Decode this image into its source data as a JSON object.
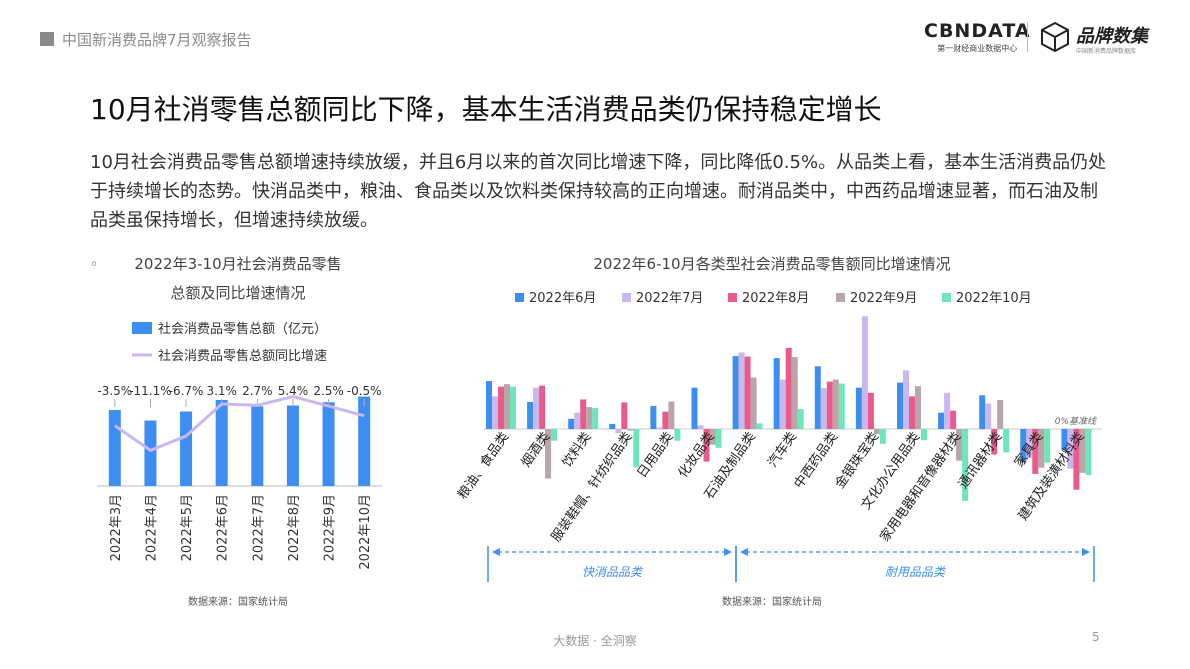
{
  "header": {
    "report_title": "中国新消费品牌7月观察报告"
  },
  "logos": {
    "cbndata_name": "CBNDATA",
    "cbndata_sub": "第一财经商业数据中心",
    "brand_name": "品牌数集",
    "brand_sub": "中国新消费品牌数据库"
  },
  "title": "10月社消零售总额同比下降，基本生活消费品类仍保持稳定增长",
  "paragraph": "10月社会消费品零售总额增速持续放缓，并且6月以来的首次同比增速下降，同比降低0.5%。从品类上看，基本生活消费品仍处于持续增长的态势。快消品类中，粮油、食品类以及饮料类保持较高的正向增速。耐消品类中，中西药品增速显著，而石油及制品类虽保持增长，但增速持续放缓。",
  "chart_data": [
    {
      "type": "bar",
      "title_lines": [
        "2022年3-10月社会消费品零售",
        "总额及同比增速情况"
      ],
      "bullet": "◦",
      "categories": [
        "2022年3月",
        "2022年4月",
        "2022年5月",
        "2022年6月",
        "2022年7月",
        "2022年8月",
        "2022年9月",
        "2022年10月"
      ],
      "series": [
        {
          "name": "社会消费品零售总额（亿元）",
          "type": "bar",
          "color": "#3D8EF0",
          "values": [
            34233,
            29483,
            33547,
            38742,
            35870,
            36258,
            37745,
            40271
          ]
        },
        {
          "name": "社会消费品零售总额同比增速",
          "type": "line",
          "color": "#C9B8EE",
          "values": [
            -3.5,
            -11.1,
            -6.7,
            3.1,
            2.7,
            5.4,
            2.5,
            -0.5
          ],
          "labels": [
            "-3.5%",
            "-11.1%",
            "-6.7%",
            "3.1%",
            "2.7%",
            "5.4%",
            "2.5%",
            "-0.5%"
          ]
        }
      ],
      "ylim": [
        0,
        50000
      ],
      "line_ylim": [
        -22,
        12
      ],
      "source": "数据来源：国家统计局"
    },
    {
      "type": "bar",
      "title": "2022年6-10月各类型社会消费品零售额同比增速情况",
      "categories": [
        "粮油、食品类",
        "烟酒类",
        "饮料类",
        "服装鞋帽、针纺织品类",
        "日用品类",
        "化妆品类",
        "石油及制品类",
        "汽车类",
        "中西药品类",
        "金银珠宝类",
        "文化办公用品类",
        "家用电器和音像器材类",
        "通讯器材类",
        "家具类",
        "建筑及装潢材料类"
      ],
      "series": [
        {
          "name": "2022年6月",
          "color": "#3D8EF0",
          "values": [
            9.4,
            5.3,
            2.0,
            1.0,
            4.5,
            8.1,
            14.3,
            13.9,
            12.3,
            8.1,
            9.1,
            3.2,
            6.6,
            -6.6,
            -4.1
          ]
        },
        {
          "name": "2022年7月",
          "color": "#C9B8EE",
          "values": [
            6.4,
            8.1,
            3.2,
            -0.8,
            0.3,
            0.7,
            15.0,
            9.7,
            8.0,
            22.1,
            11.5,
            7.1,
            5.0,
            -5.7,
            -7.8
          ]
        },
        {
          "name": "2022年8月",
          "color": "#EA5B8C",
          "values": [
            8.3,
            8.5,
            5.8,
            5.2,
            3.4,
            -6.4,
            14.2,
            15.9,
            9.3,
            7.1,
            6.4,
            3.6,
            -5.0,
            -8.8,
            -11.9
          ]
        },
        {
          "name": "2022年9月",
          "color": "#B8A6A8",
          "values": [
            8.8,
            -9.7,
            4.3,
            -0.3,
            5.4,
            -3.1,
            10.1,
            14.1,
            9.7,
            -1.0,
            8.4,
            -6.2,
            5.7,
            -7.6,
            -8.6
          ]
        },
        {
          "name": "2022年10月",
          "color": "#6FE5BA",
          "values": [
            8.3,
            -2.3,
            4.1,
            -7.5,
            -2.3,
            -3.7,
            1.1,
            3.9,
            8.9,
            -2.9,
            -2.2,
            -14.1,
            -4.6,
            -6.6,
            -9.0
          ]
        }
      ],
      "ylim": [
        -15,
        24
      ],
      "baseline_label": "0%基准线",
      "groups": [
        {
          "label": "快消品品类",
          "from": 0,
          "to": 5
        },
        {
          "label": "耐用品品类",
          "from": 6,
          "to": 14
        }
      ],
      "source": "数据来源：国家统计局"
    }
  ],
  "footer": {
    "slogan": "大数据 · 全洞察",
    "page_number": "5"
  }
}
